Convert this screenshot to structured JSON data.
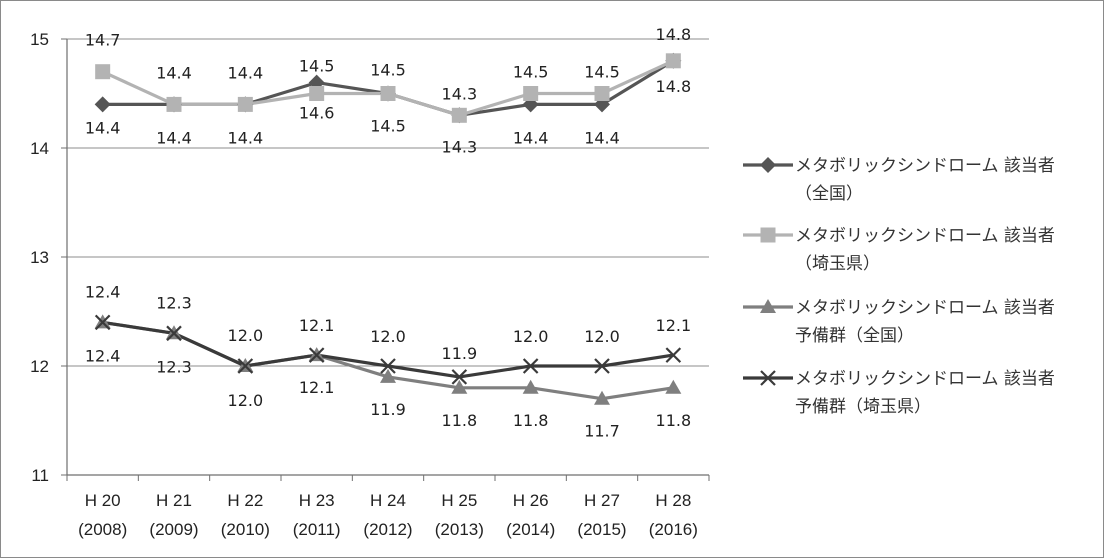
{
  "chart_data": {
    "type": "line",
    "ylim": [
      11,
      15
    ],
    "y_ticks": [
      11,
      12,
      13,
      14,
      15
    ],
    "grid": true,
    "legend_position": "right",
    "categories": [
      {
        "era": "H 20",
        "year": "(2008)"
      },
      {
        "era": "H 21",
        "year": "(2009)"
      },
      {
        "era": "H 22",
        "year": "(2010)"
      },
      {
        "era": "H 23",
        "year": "(2011)"
      },
      {
        "era": "H 24",
        "year": "(2012)"
      },
      {
        "era": "H 25",
        "year": "(2013)"
      },
      {
        "era": "H 26",
        "year": "(2014)"
      },
      {
        "era": "H 27",
        "year": "(2015)"
      },
      {
        "era": "H 28",
        "year": "(2016)"
      }
    ],
    "series": [
      {
        "name_line1": "メタボリックシンドローム 該当者",
        "name_line2": "（全国）",
        "marker": "diamond",
        "color": "#555555",
        "values": [
          14.4,
          14.4,
          14.4,
          14.6,
          14.5,
          14.3,
          14.4,
          14.4,
          14.8
        ],
        "labels": [
          "14.4",
          "14.4",
          "14.4",
          "14.6",
          "14.5",
          "14.3",
          "14.4",
          "14.4",
          "14.8"
        ]
      },
      {
        "name_line1": "メタボリックシンドローム 該当者",
        "name_line2": "（埼玉県）",
        "marker": "square",
        "color": "#b3b3b3",
        "values": [
          14.7,
          14.4,
          14.4,
          14.5,
          14.5,
          14.3,
          14.5,
          14.5,
          14.8
        ],
        "labels": [
          "14.7",
          "14.4",
          "14.4",
          "14.5",
          "14.5",
          "14.3",
          "14.5",
          "14.5",
          "14.8"
        ]
      },
      {
        "name_line1": "メタボリックシンドローム 該当者",
        "name_line2": "予備群（全国）",
        "marker": "triangle",
        "color": "#7f7f7f",
        "values": [
          12.4,
          12.3,
          12.0,
          12.1,
          11.9,
          11.8,
          11.8,
          11.7,
          11.8
        ],
        "labels": [
          "12.4",
          "12.3",
          "12.0",
          "12.1",
          "11.9",
          "11.8",
          "11.8",
          "11.7",
          "11.8"
        ]
      },
      {
        "name_line1": "メタボリックシンドローム 該当者",
        "name_line2": "予備群（埼玉県）",
        "marker": "x",
        "color": "#3a3a3a",
        "values": [
          12.4,
          12.3,
          12.0,
          12.1,
          12.0,
          11.9,
          12.0,
          12.0,
          12.1
        ],
        "labels": [
          "12.4",
          "12.3",
          "12.0",
          "12.1",
          "12.0",
          "11.9",
          "12.0",
          "12.0",
          "12.1"
        ]
      }
    ]
  }
}
